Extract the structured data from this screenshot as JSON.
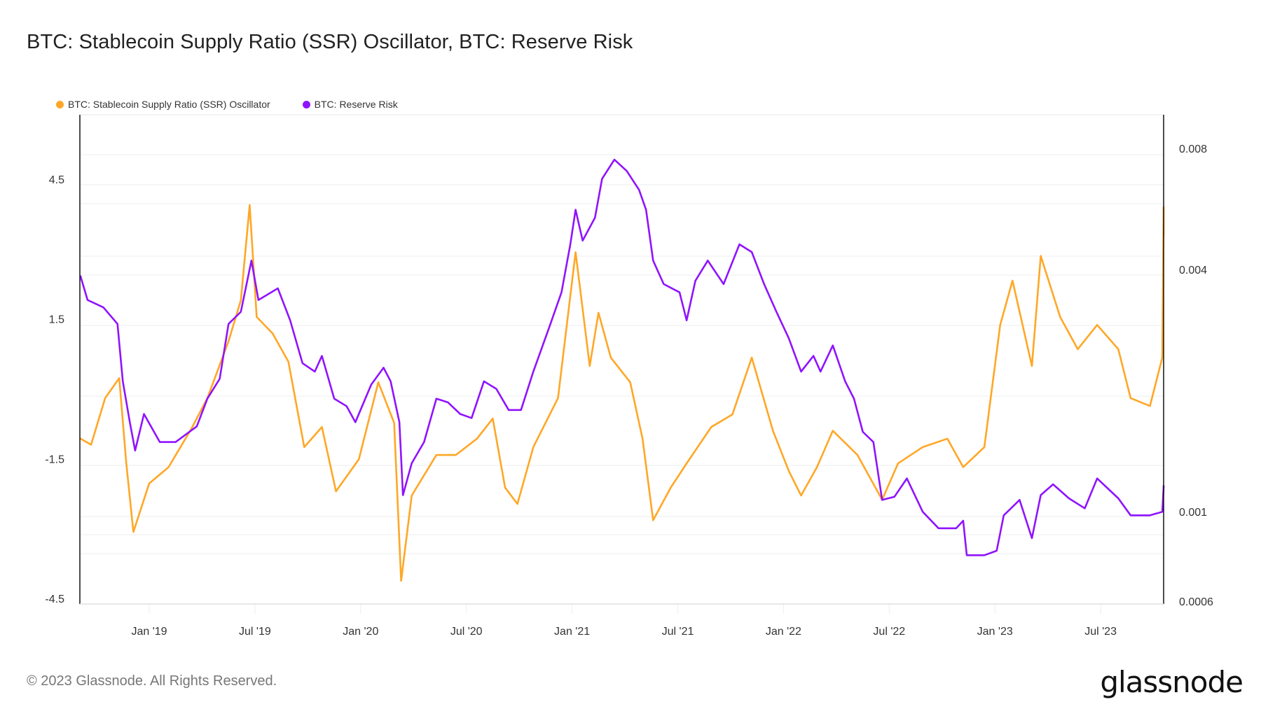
{
  "title": "BTC: Stablecoin Supply Ratio (SSR) Oscillator, BTC: Reserve Risk",
  "footer": "© 2023 Glassnode. All Rights Reserved.",
  "brand": "glassnode",
  "colors": {
    "ssr": "#FFA726",
    "reserve_risk": "#9013FE",
    "grid": "#ececec",
    "axis": "#111111"
  },
  "chart_data": {
    "type": "line",
    "title": "BTC: Stablecoin Supply Ratio (SSR) Oscillator, BTC: Reserve Risk",
    "legend_position": "top-left",
    "grid": true,
    "x_range": [
      "2018-09",
      "2023-11"
    ],
    "x_ticks": [
      "Jan '19",
      "Jul '19",
      "Jan '20",
      "Jul '20",
      "Jan '21",
      "Jul '21",
      "Jan '22",
      "Jul '22",
      "Jan '23",
      "Jul '23"
    ],
    "y_left": {
      "label": "",
      "scale": "linear",
      "ticks": [
        "4.5",
        "1.5",
        "-1.5",
        "-4.5"
      ],
      "range": [
        -4.5,
        5.9
      ]
    },
    "y_right": {
      "label": "",
      "scale": "log",
      "ticks": [
        "0.008",
        "0.004",
        "0.001",
        "0.0006"
      ],
      "range": [
        0.0006,
        0.0104
      ]
    },
    "series": [
      {
        "name": "BTC: Stablecoin Supply Ratio (SSR) Oscillator",
        "axis": "left",
        "points": [
          [
            -3.9,
            -1.07
          ],
          [
            -3.3,
            -1.2
          ],
          [
            -2.5,
            -0.2
          ],
          [
            -1.7,
            0.23
          ],
          [
            -1.3,
            -1.6
          ],
          [
            -0.9,
            -3.07
          ],
          [
            0,
            -2.03
          ],
          [
            1.1,
            -1.68
          ],
          [
            2.4,
            -0.85
          ],
          [
            3.3,
            -0.2
          ],
          [
            4.5,
            1.02
          ],
          [
            5.2,
            1.9
          ],
          [
            5.7,
            3.94
          ],
          [
            6.1,
            1.54
          ],
          [
            7.0,
            1.19
          ],
          [
            7.9,
            0.58
          ],
          [
            8.8,
            -1.25
          ],
          [
            9.8,
            -0.82
          ],
          [
            10.6,
            -2.2
          ],
          [
            11.9,
            -1.51
          ],
          [
            13.0,
            0.14
          ],
          [
            13.9,
            -0.73
          ],
          [
            14.3,
            -4.12
          ],
          [
            14.9,
            -2.29
          ],
          [
            16.3,
            -1.42
          ],
          [
            17.4,
            -1.42
          ],
          [
            18.6,
            -1.07
          ],
          [
            19.5,
            -0.64
          ],
          [
            20.2,
            -2.12
          ],
          [
            20.9,
            -2.47
          ],
          [
            21.8,
            -1.25
          ],
          [
            23.2,
            -0.2
          ],
          [
            24.2,
            2.93
          ],
          [
            25.0,
            0.49
          ],
          [
            25.5,
            1.63
          ],
          [
            26.2,
            0.67
          ],
          [
            27.3,
            0.14
          ],
          [
            28.0,
            -1.07
          ],
          [
            28.6,
            -2.82
          ],
          [
            29.6,
            -2.12
          ],
          [
            30.5,
            -1.6
          ],
          [
            31.9,
            -0.82
          ],
          [
            33.1,
            -0.55
          ],
          [
            34.2,
            0.67
          ],
          [
            35.4,
            -0.9
          ],
          [
            36.3,
            -1.76
          ],
          [
            37.0,
            -2.29
          ],
          [
            37.9,
            -1.68
          ],
          [
            38.8,
            -0.9
          ],
          [
            40.2,
            -1.42
          ],
          [
            41.6,
            -2.38
          ],
          [
            42.5,
            -1.6
          ],
          [
            43.9,
            -1.25
          ],
          [
            45.3,
            -1.07
          ],
          [
            46.2,
            -1.68
          ],
          [
            47.4,
            -1.25
          ],
          [
            48.3,
            1.37
          ],
          [
            49.0,
            2.32
          ],
          [
            50.1,
            0.49
          ],
          [
            50.6,
            2.85
          ],
          [
            51.7,
            1.54
          ],
          [
            52.7,
            0.85
          ],
          [
            53.8,
            1.37
          ],
          [
            55.0,
            0.85
          ],
          [
            55.7,
            -0.2
          ],
          [
            56.8,
            -0.37
          ],
          [
            57.5,
            0.67
          ],
          [
            57.8,
            3.9
          ],
          [
            58.1,
            3.28
          ]
        ]
      },
      {
        "name": "BTC: Reserve Risk",
        "axis": "right",
        "points": [
          [
            -3.9,
            0.00385
          ],
          [
            -3.5,
            0.00336
          ],
          [
            -2.6,
            0.00322
          ],
          [
            -1.8,
            0.00293
          ],
          [
            -1.5,
            0.00211
          ],
          [
            -1.1,
            0.00167
          ],
          [
            -0.8,
            0.00142
          ],
          [
            -0.3,
            0.00175
          ],
          [
            0.6,
            0.00149
          ],
          [
            1.5,
            0.00149
          ],
          [
            2.7,
            0.00163
          ],
          [
            3.3,
            0.00191
          ],
          [
            4.0,
            0.00214
          ],
          [
            4.5,
            0.00293
          ],
          [
            5.2,
            0.00314
          ],
          [
            5.8,
            0.00421
          ],
          [
            6.2,
            0.00336
          ],
          [
            7.3,
            0.00359
          ],
          [
            8.0,
            0.00299
          ],
          [
            8.7,
            0.00234
          ],
          [
            9.4,
            0.00223
          ],
          [
            9.8,
            0.00244
          ],
          [
            10.5,
            0.00191
          ],
          [
            11.2,
            0.00183
          ],
          [
            11.7,
            0.00167
          ],
          [
            12.6,
            0.00207
          ],
          [
            13.3,
            0.00228
          ],
          [
            13.7,
            0.00211
          ],
          [
            14.2,
            0.00167
          ],
          [
            14.4,
            0.0011
          ],
          [
            14.9,
            0.00132
          ],
          [
            15.6,
            0.00149
          ],
          [
            16.3,
            0.00191
          ],
          [
            16.96,
            0.00187
          ],
          [
            17.65,
            0.00175
          ],
          [
            18.3,
            0.00171
          ],
          [
            19.0,
            0.00211
          ],
          [
            19.7,
            0.00202
          ],
          [
            20.4,
            0.00179
          ],
          [
            21.1,
            0.00179
          ],
          [
            21.8,
            0.00223
          ],
          [
            22.7,
            0.00287
          ],
          [
            23.4,
            0.00351
          ],
          [
            23.9,
            0.00462
          ],
          [
            24.2,
            0.00563
          ],
          [
            24.6,
            0.00472
          ],
          [
            25.3,
            0.00538
          ],
          [
            25.7,
            0.00672
          ],
          [
            26.4,
            0.0075
          ],
          [
            27.1,
            0.00703
          ],
          [
            27.8,
            0.00631
          ],
          [
            28.2,
            0.00563
          ],
          [
            28.6,
            0.00421
          ],
          [
            29.2,
            0.00368
          ],
          [
            30.1,
            0.00351
          ],
          [
            30.5,
            0.00299
          ],
          [
            31.0,
            0.00375
          ],
          [
            31.7,
            0.00421
          ],
          [
            32.6,
            0.00368
          ],
          [
            33.5,
            0.00462
          ],
          [
            34.2,
            0.00442
          ],
          [
            34.9,
            0.00368
          ],
          [
            35.6,
            0.00314
          ],
          [
            36.3,
            0.0027
          ],
          [
            37.0,
            0.00223
          ],
          [
            37.7,
            0.00244
          ],
          [
            38.1,
            0.00223
          ],
          [
            38.8,
            0.00259
          ],
          [
            39.5,
            0.00211
          ],
          [
            40.0,
            0.00191
          ],
          [
            40.5,
            0.00158
          ],
          [
            41.1,
            0.00149
          ],
          [
            41.6,
            0.00107
          ],
          [
            42.3,
            0.00109
          ],
          [
            43.0,
            0.00121
          ],
          [
            43.9,
            0.001
          ],
          [
            44.8,
            0.00091
          ],
          [
            45.8,
            0.00091
          ],
          [
            46.2,
            0.00095
          ],
          [
            46.4,
            0.00078
          ],
          [
            47.4,
            0.00078
          ],
          [
            48.1,
            0.0008
          ],
          [
            48.5,
            0.00098
          ],
          [
            49.4,
            0.00107
          ],
          [
            50.1,
            0.00086
          ],
          [
            50.6,
            0.0011
          ],
          [
            51.3,
            0.00117
          ],
          [
            52.2,
            0.00108
          ],
          [
            53.1,
            0.00102
          ],
          [
            53.8,
            0.00121
          ],
          [
            55.0,
            0.00108
          ],
          [
            55.7,
            0.00098
          ],
          [
            56.8,
            0.00098
          ],
          [
            57.5,
            0.001
          ],
          [
            57.8,
            0.00115
          ],
          [
            58.1,
            0.00116
          ]
        ]
      }
    ]
  },
  "legend": [
    {
      "label": "BTC: Stablecoin Supply Ratio (SSR) Oscillator",
      "color": "#FFA726"
    },
    {
      "label": "BTC: Reserve Risk",
      "color": "#9013FE"
    }
  ]
}
